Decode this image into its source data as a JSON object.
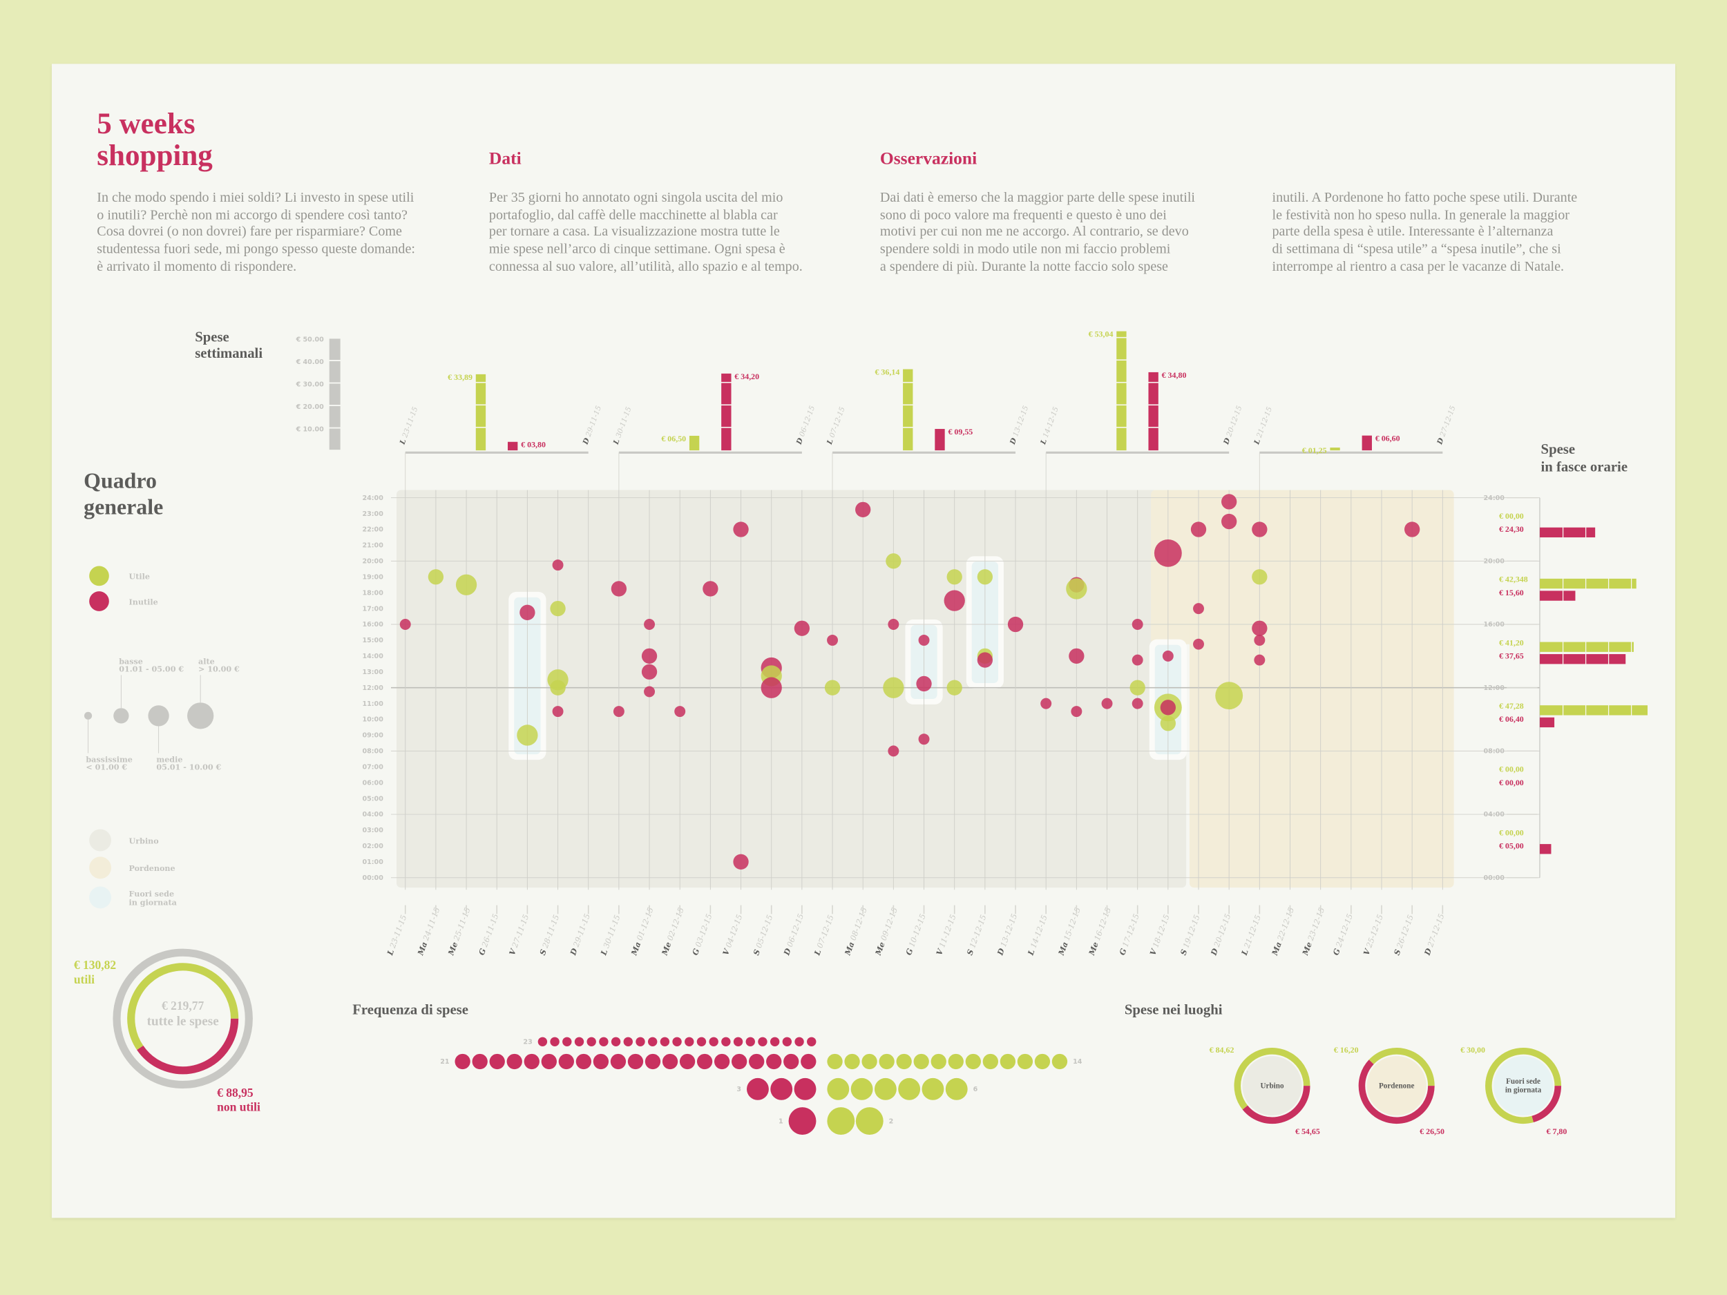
{
  "header": {
    "title_line1": "5 weeks",
    "title_line2": "shopping",
    "intro_lines": [
      "In che modo spendo i miei soldi? Li investo in spese utili",
      "o inutili? Perchè non mi accorgo di spendere così tanto?",
      "Cosa dovrei (o non dovrei) fare per risparmiare? Come",
      "studentessa fuori sede, mi pongo spesso queste domande:",
      "è arrivato il momento di rispondere."
    ],
    "dati_heading": "Dati",
    "dati_lines": [
      "Per 35 giorni ho annotato ogni singola uscita del mio",
      "portafoglio, dal caffè delle macchinette al blabla car",
      "per tornare a casa. La visualizzazione mostra tutte le",
      "mie spese nell’arco di cinque settimane. Ogni spesa è",
      "connessa al suo valore, all’utilità, allo spazio e al tempo."
    ],
    "osservazioni_heading": "Osservazioni",
    "osservazioni_lines_col1": [
      "Dai dati è emerso che la maggior parte delle spese inutili",
      "sono di poco valore ma frequenti e questo è uno dei",
      "motivi per cui non me ne accorgo. Al contrario, se devo",
      "spendere soldi in modo utile non mi faccio problemi",
      "a spendere di più. Durante la notte faccio solo spese"
    ],
    "osservazioni_lines_col2": [
      "inutili. A Pordenone ho fatto poche spese utili. Durante",
      "le festività non ho speso nulla. In generale la maggior",
      "parte della spesa è utile. Interessante è l’alternanza",
      "di settimana di “spesa utile” a “spesa inutile”, che si",
      "interrompe al rientro a casa per le vacanze di Natale."
    ]
  },
  "colors": {
    "utile": "#c5d350",
    "inutile": "#c8305f",
    "urbino": "#ebebe3",
    "pordenone": "#f3edd9",
    "fuori_sede": "#e8f3f3",
    "axis_gray": "#c8c8c4"
  },
  "legend": {
    "title_line1": "Quadro",
    "title_line2": "generale",
    "utile": "Utile",
    "inutile": "Inutile",
    "sizes": [
      {
        "name": "bassissime",
        "range": "< 01.00 €"
      },
      {
        "name": "basse",
        "range": "01.01 - 05.00 €"
      },
      {
        "name": "medie",
        "range": "05.01 - 10.00 €"
      },
      {
        "name": "alte",
        "range": "> 10.00 €"
      }
    ],
    "places": [
      "Urbino",
      "Pordenone",
      "Fuori sede",
      "in giornata"
    ]
  },
  "totals": {
    "total": "€ 219,77",
    "total_label": "tutte le spese",
    "utili_value": "€ 130,82",
    "utili_label": "utili",
    "non_utili_value": "€ 88,95",
    "non_utili_label": "non utili",
    "utili": 130.82,
    "non_utili": 88.95
  },
  "chart_data": [
    {
      "type": "bar",
      "title_line1": "Spese",
      "title_line2": "settimanali",
      "y_ticks": [
        "€ 10.00",
        "€ 20.00",
        "€ 30.00",
        "€ 40.00",
        "€ 50.00"
      ],
      "ylim": [
        0,
        50
      ],
      "weeks": [
        {
          "start_day": "L",
          "start_date": "23-11-15",
          "end_day": "D",
          "end_date": "29-11-15",
          "utile": 33.89,
          "utile_label": "€ 33,89",
          "inutile": 3.8,
          "inutile_label": "€ 03,80"
        },
        {
          "start_day": "L",
          "start_date": "30-11-15",
          "end_day": "D",
          "end_date": "06-12-15",
          "utile": 6.5,
          "utile_label": "€ 06,50",
          "inutile": 34.2,
          "inutile_label": "€ 34,20"
        },
        {
          "start_day": "L",
          "start_date": "07-12-15",
          "end_day": "D",
          "end_date": "13-12-15",
          "utile": 36.14,
          "utile_label": "€ 36,14",
          "inutile": 9.55,
          "inutile_label": "€ 09,55"
        },
        {
          "start_day": "L",
          "start_date": "14-12-15",
          "end_day": "D",
          "end_date": "20-12-15",
          "utile": 53.04,
          "utile_label": "€ 53,04",
          "inutile": 34.8,
          "inutile_label": "€ 34,80"
        },
        {
          "start_day": "L",
          "start_date": "21-12-15",
          "end_day": "D",
          "end_date": "27-12-15",
          "utile": 1.25,
          "utile_label": "€ 01,25",
          "inutile": 6.6,
          "inutile_label": "€ 06,60"
        }
      ]
    },
    {
      "type": "scatter",
      "y_ticks": [
        "00:00",
        "01:00",
        "02:00",
        "03:00",
        "04:00",
        "05:00",
        "06:00",
        "07:00",
        "08:00",
        "09:00",
        "10:00",
        "11:00",
        "12:00",
        "13:00",
        "14:00",
        "15:00",
        "16:00",
        "17:00",
        "18:00",
        "19:00",
        "20:00",
        "21:00",
        "22:00",
        "23:00",
        "24:00"
      ],
      "days": [
        {
          "abbr": "L",
          "date": "23-11-15"
        },
        {
          "abbr": "Ma",
          "date": "24-11-15"
        },
        {
          "abbr": "Me",
          "date": "25-11-15"
        },
        {
          "abbr": "G",
          "date": "26-11-15"
        },
        {
          "abbr": "V",
          "date": "27-11-15"
        },
        {
          "abbr": "S",
          "date": "28-11-15"
        },
        {
          "abbr": "D",
          "date": "29-11-15"
        },
        {
          "abbr": "L",
          "date": "30-11-15"
        },
        {
          "abbr": "Ma",
          "date": "01-12-15"
        },
        {
          "abbr": "Me",
          "date": "02-12-15"
        },
        {
          "abbr": "G",
          "date": "03-12-15"
        },
        {
          "abbr": "V",
          "date": "04-12-15"
        },
        {
          "abbr": "S",
          "date": "05-12-15"
        },
        {
          "abbr": "D",
          "date": "06-12-15"
        },
        {
          "abbr": "L",
          "date": "07-12-15"
        },
        {
          "abbr": "Ma",
          "date": "08-12-15"
        },
        {
          "abbr": "Me",
          "date": "09-12-15"
        },
        {
          "abbr": "G",
          "date": "10-12-15"
        },
        {
          "abbr": "V",
          "date": "11-12-15"
        },
        {
          "abbr": "S",
          "date": "12-12-15"
        },
        {
          "abbr": "D",
          "date": "13-12-15"
        },
        {
          "abbr": "L",
          "date": "14-12-15"
        },
        {
          "abbr": "Ma",
          "date": "15-12-15"
        },
        {
          "abbr": "Me",
          "date": "16-12-15"
        },
        {
          "abbr": "G",
          "date": "17-12-15"
        },
        {
          "abbr": "V",
          "date": "18-12-15"
        },
        {
          "abbr": "S",
          "date": "19-12-15"
        },
        {
          "abbr": "D",
          "date": "20-12-15"
        },
        {
          "abbr": "L",
          "date": "21-12-15"
        },
        {
          "abbr": "Ma",
          "date": "22-12-15"
        },
        {
          "abbr": "Me",
          "date": "23-12-15"
        },
        {
          "abbr": "G",
          "date": "24-12-15"
        },
        {
          "abbr": "V",
          "date": "25-12-15"
        },
        {
          "abbr": "S",
          "date": "26-12-15"
        },
        {
          "abbr": "D",
          "date": "27-12-15"
        }
      ],
      "fuori_sede": [
        {
          "date": "27-11-15",
          "from": "08:00",
          "to": "17:30"
        },
        {
          "date": "10-12-15",
          "from": "11:30",
          "to": "15:45"
        },
        {
          "date": "12-12-15",
          "from": "12:30",
          "to": "19:45"
        },
        {
          "date": "18-12-15",
          "from": "08:00",
          "to": "14:30"
        }
      ],
      "points": [
        {
          "date": "23-11-15",
          "time": "16:00",
          "type": "inutile",
          "size": "bassissime"
        },
        {
          "date": "24-11-15",
          "time": "19:00",
          "type": "utile",
          "size": "basse"
        },
        {
          "date": "25-11-15",
          "time": "18:30",
          "type": "utile",
          "size": "medie"
        },
        {
          "date": "27-11-15",
          "time": "16:45",
          "type": "inutile",
          "size": "basse"
        },
        {
          "date": "27-11-15",
          "time": "09:00",
          "type": "utile",
          "size": "medie"
        },
        {
          "date": "28-11-15",
          "time": "19:45",
          "type": "inutile",
          "size": "bassissime"
        },
        {
          "date": "28-11-15",
          "time": "17:00",
          "type": "utile",
          "size": "basse"
        },
        {
          "date": "28-11-15",
          "time": "12:30",
          "type": "utile",
          "size": "medie"
        },
        {
          "date": "28-11-15",
          "time": "12:00",
          "type": "utile",
          "size": "basse"
        },
        {
          "date": "28-11-15",
          "time": "10:30",
          "type": "inutile",
          "size": "bassissime"
        },
        {
          "date": "30-11-15",
          "time": "18:15",
          "type": "inutile",
          "size": "basse"
        },
        {
          "date": "30-11-15",
          "time": "10:30",
          "type": "inutile",
          "size": "bassissime"
        },
        {
          "date": "01-12-15",
          "time": "16:00",
          "type": "inutile",
          "size": "bassissime"
        },
        {
          "date": "01-12-15",
          "time": "14:00",
          "type": "inutile",
          "size": "basse"
        },
        {
          "date": "01-12-15",
          "time": "13:00",
          "type": "inutile",
          "size": "basse"
        },
        {
          "date": "01-12-15",
          "time": "11:45",
          "type": "inutile",
          "size": "bassissime"
        },
        {
          "date": "02-12-15",
          "time": "10:30",
          "type": "inutile",
          "size": "bassissime"
        },
        {
          "date": "03-12-15",
          "time": "18:15",
          "type": "inutile",
          "size": "basse"
        },
        {
          "date": "04-12-15",
          "time": "22:00",
          "type": "inutile",
          "size": "basse"
        },
        {
          "date": "04-12-15",
          "time": "01:00",
          "type": "inutile",
          "size": "basse"
        },
        {
          "date": "05-12-15",
          "time": "13:15",
          "type": "inutile",
          "size": "medie"
        },
        {
          "date": "05-12-15",
          "time": "12:45",
          "type": "utile",
          "size": "medie"
        },
        {
          "date": "05-12-15",
          "time": "12:00",
          "type": "inutile",
          "size": "medie"
        },
        {
          "date": "06-12-15",
          "time": "15:45",
          "type": "inutile",
          "size": "basse"
        },
        {
          "date": "07-12-15",
          "time": "15:00",
          "type": "inutile",
          "size": "bassissime"
        },
        {
          "date": "07-12-15",
          "time": "12:00",
          "type": "utile",
          "size": "basse"
        },
        {
          "date": "08-12-15",
          "time": "23:15",
          "type": "inutile",
          "size": "basse"
        },
        {
          "date": "09-12-15",
          "time": "20:00",
          "type": "utile",
          "size": "basse"
        },
        {
          "date": "09-12-15",
          "time": "16:00",
          "type": "inutile",
          "size": "bassissime"
        },
        {
          "date": "09-12-15",
          "time": "12:00",
          "type": "utile",
          "size": "medie"
        },
        {
          "date": "09-12-15",
          "time": "08:00",
          "type": "inutile",
          "size": "bassissime"
        },
        {
          "date": "10-12-15",
          "time": "15:00",
          "type": "inutile",
          "size": "bassissime"
        },
        {
          "date": "10-12-15",
          "time": "12:15",
          "type": "inutile",
          "size": "basse"
        },
        {
          "date": "10-12-15",
          "time": "08:45",
          "type": "inutile",
          "size": "bassissime"
        },
        {
          "date": "11-12-15",
          "time": "19:00",
          "type": "utile",
          "size": "basse"
        },
        {
          "date": "11-12-15",
          "time": "17:30",
          "type": "inutile",
          "size": "medie"
        },
        {
          "date": "11-12-15",
          "time": "12:00",
          "type": "utile",
          "size": "basse"
        },
        {
          "date": "12-12-15",
          "time": "19:00",
          "type": "utile",
          "size": "basse"
        },
        {
          "date": "12-12-15",
          "time": "14:00",
          "type": "utile",
          "size": "basse"
        },
        {
          "date": "12-12-15",
          "time": "13:45",
          "type": "inutile",
          "size": "basse"
        },
        {
          "date": "13-12-15",
          "time": "16:00",
          "type": "inutile",
          "size": "basse"
        },
        {
          "date": "14-12-15",
          "time": "11:00",
          "type": "inutile",
          "size": "bassissime"
        },
        {
          "date": "15-12-15",
          "time": "18:30",
          "type": "inutile",
          "size": "basse"
        },
        {
          "date": "15-12-15",
          "time": "18:15",
          "type": "utile",
          "size": "medie"
        },
        {
          "date": "15-12-15",
          "time": "14:00",
          "type": "inutile",
          "size": "basse"
        },
        {
          "date": "15-12-15",
          "time": "10:30",
          "type": "inutile",
          "size": "bassissime"
        },
        {
          "date": "16-12-15",
          "time": "11:00",
          "type": "inutile",
          "size": "bassissime"
        },
        {
          "date": "17-12-15",
          "time": "16:00",
          "type": "inutile",
          "size": "bassissime"
        },
        {
          "date": "17-12-15",
          "time": "13:45",
          "type": "inutile",
          "size": "bassissime"
        },
        {
          "date": "17-12-15",
          "time": "12:00",
          "type": "utile",
          "size": "basse"
        },
        {
          "date": "17-12-15",
          "time": "11:00",
          "type": "inutile",
          "size": "bassissime"
        },
        {
          "date": "18-12-15",
          "time": "20:30",
          "type": "inutile",
          "size": "alte"
        },
        {
          "date": "18-12-15",
          "time": "14:00",
          "type": "inutile",
          "size": "bassissime"
        },
        {
          "date": "18-12-15",
          "time": "10:45",
          "type": "utile",
          "size": "alte"
        },
        {
          "date": "18-12-15",
          "time": "10:45",
          "type": "inutile",
          "size": "basse"
        },
        {
          "date": "18-12-15",
          "time": "09:45",
          "type": "utile",
          "size": "basse"
        },
        {
          "date": "19-12-15",
          "time": "22:00",
          "type": "inutile",
          "size": "basse"
        },
        {
          "date": "19-12-15",
          "time": "17:00",
          "type": "inutile",
          "size": "bassissime"
        },
        {
          "date": "19-12-15",
          "time": "14:45",
          "type": "inutile",
          "size": "bassissime"
        },
        {
          "date": "20-12-15",
          "time": "23:45",
          "type": "inutile",
          "size": "basse"
        },
        {
          "date": "20-12-15",
          "time": "22:30",
          "type": "inutile",
          "size": "basse"
        },
        {
          "date": "20-12-15",
          "time": "11:30",
          "type": "utile",
          "size": "alte"
        },
        {
          "date": "21-12-15",
          "time": "22:00",
          "type": "inutile",
          "size": "basse"
        },
        {
          "date": "21-12-15",
          "time": "19:00",
          "type": "utile",
          "size": "basse"
        },
        {
          "date": "21-12-15",
          "time": "15:45",
          "type": "inutile",
          "size": "basse"
        },
        {
          "date": "21-12-15",
          "time": "15:00",
          "type": "inutile",
          "size": "bassissime"
        },
        {
          "date": "21-12-15",
          "time": "13:45",
          "type": "inutile",
          "size": "bassissime"
        },
        {
          "date": "26-12-15",
          "time": "22:00",
          "type": "inutile",
          "size": "basse"
        }
      ]
    },
    {
      "type": "bar",
      "title_line1": "Spese",
      "title_line2": "in fasce orarie",
      "y_ticks": [
        "24:00",
        "20:00",
        "16:00",
        "12:00",
        "08:00",
        "04:00",
        "00:00"
      ],
      "bins": [
        {
          "from": "20:00",
          "to": "24:00",
          "utile": 0,
          "utile_label": "€ 00,00",
          "inutile": 24.3,
          "inutile_label": "€ 24,30"
        },
        {
          "from": "16:00",
          "to": "20:00",
          "utile": 42.348,
          "utile_label": "€ 42,348",
          "inutile": 15.6,
          "inutile_label": "€ 15,60"
        },
        {
          "from": "12:00",
          "to": "16:00",
          "utile": 41.2,
          "utile_label": "€ 41,20",
          "inutile": 37.65,
          "inutile_label": "€ 37,65"
        },
        {
          "from": "08:00",
          "to": "12:00",
          "utile": 47.28,
          "utile_label": "€ 47,28",
          "inutile": 6.4,
          "inutile_label": "€ 06,40"
        },
        {
          "from": "04:00",
          "to": "08:00",
          "utile": 0,
          "utile_label": "€ 00,00",
          "inutile": 0,
          "inutile_label": "€ 00,00"
        },
        {
          "from": "00:00",
          "to": "04:00",
          "utile": 0,
          "utile_label": "€ 00,00",
          "inutile": 5.0,
          "inutile_label": "€ 05,00"
        }
      ]
    },
    {
      "type": "bar",
      "title": "Frequenza di spese",
      "rows": [
        {
          "size": "bassissime",
          "inutile": 23,
          "utile": 0
        },
        {
          "size": "basse",
          "inutile": 21,
          "utile": 14
        },
        {
          "size": "medie",
          "inutile": 3,
          "utile": 6
        },
        {
          "size": "alte",
          "inutile": 1,
          "utile": 2
        }
      ]
    },
    {
      "type": "pie",
      "title": "Spese nei luoghi",
      "places": [
        {
          "name": "Urbino",
          "name_line2": "",
          "utile": 84.62,
          "utile_label": "€ 84,62",
          "inutile": 54.65,
          "inutile_label": "€ 54,65"
        },
        {
          "name": "Pordenone",
          "name_line2": "",
          "utile": 16.2,
          "utile_label": "€ 16,20",
          "inutile": 26.5,
          "inutile_label": "€ 26,50"
        },
        {
          "name": "Fuori sede",
          "name_line2": "in giornata",
          "utile": 30.0,
          "utile_label": "€ 30,00",
          "inutile": 7.8,
          "inutile_label": "€ 7,80"
        }
      ]
    }
  ]
}
